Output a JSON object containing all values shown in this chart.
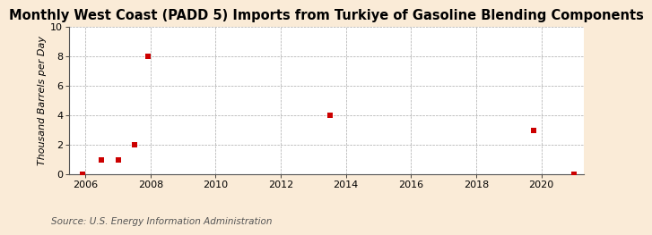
{
  "title": "Monthly West Coast (PADD 5) Imports from Turkiye of Gasoline Blending Components",
  "ylabel": "Thousand Barrels per Day",
  "source": "Source: U.S. Energy Information Administration",
  "background_color": "#faebd7",
  "plot_background_color": "#ffffff",
  "point_color": "#cc0000",
  "xlim": [
    2005.5,
    2021.3
  ],
  "ylim": [
    0,
    10
  ],
  "xticks": [
    2006,
    2008,
    2010,
    2012,
    2014,
    2016,
    2018,
    2020
  ],
  "yticks": [
    0,
    2,
    4,
    6,
    8,
    10
  ],
  "data_x": [
    2005.92,
    2006.5,
    2007.0,
    2007.5,
    2007.92,
    2013.5,
    2019.75,
    2021.0
  ],
  "data_y": [
    0,
    1,
    1,
    2,
    8,
    4,
    3,
    0
  ],
  "marker_size": 4,
  "title_fontsize": 10.5,
  "ylabel_fontsize": 8,
  "tick_fontsize": 8,
  "source_fontsize": 7.5
}
